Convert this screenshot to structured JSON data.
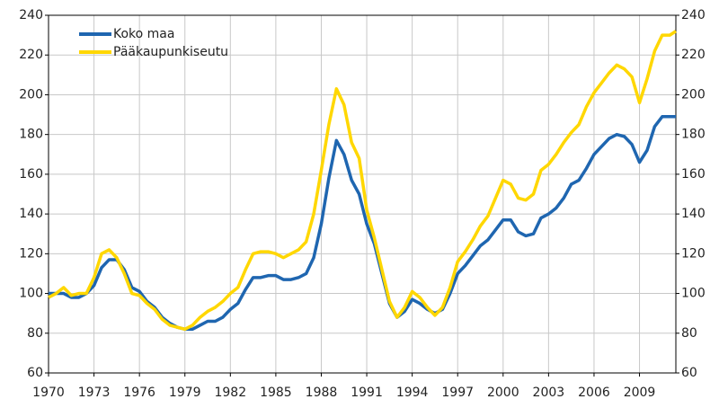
{
  "chart_data": {
    "type": "line",
    "x": [
      1970,
      1970.5,
      1971,
      1971.5,
      1972,
      1972.5,
      1973,
      1973.5,
      1974,
      1974.5,
      1975,
      1975.5,
      1976,
      1976.5,
      1977,
      1977.5,
      1978,
      1978.5,
      1979,
      1979.5,
      1980,
      1980.5,
      1981,
      1981.5,
      1982,
      1982.5,
      1983,
      1983.5,
      1984,
      1984.5,
      1985,
      1985.5,
      1986,
      1986.5,
      1987,
      1987.5,
      1988,
      1988.5,
      1989,
      1989.5,
      1990,
      1990.5,
      1991,
      1991.5,
      1992,
      1992.5,
      1993,
      1993.5,
      1994,
      1994.5,
      1995,
      1995.5,
      1996,
      1996.5,
      1997,
      1997.5,
      1998,
      1998.5,
      1999,
      1999.5,
      2000,
      2000.5,
      2001,
      2001.5,
      2002,
      2002.5,
      2003,
      2003.5,
      2004,
      2004.5,
      2005,
      2005.5,
      2006,
      2006.5,
      2007,
      2007.5,
      2008,
      2008.5,
      2009,
      2009.5,
      2010,
      2010.5,
      2011,
      2011.4
    ],
    "series": [
      {
        "name": "Koko maa",
        "color": "#1f66b0",
        "values": [
          100,
          100,
          100,
          98,
          98,
          100,
          104,
          113,
          117,
          117,
          112,
          103,
          101,
          96,
          93,
          88,
          85,
          83,
          82,
          82,
          84,
          86,
          86,
          88,
          92,
          95,
          102,
          108,
          108,
          109,
          109,
          107,
          107,
          108,
          110,
          118,
          135,
          158,
          177,
          170,
          157,
          150,
          135,
          125,
          110,
          95,
          88,
          91,
          97,
          95,
          92,
          90,
          92,
          100,
          110,
          114,
          119,
          124,
          127,
          132,
          137,
          137,
          131,
          129,
          130,
          138,
          140,
          143,
          148,
          155,
          157,
          163,
          170,
          174,
          178,
          180,
          179,
          175,
          166,
          172,
          184,
          189,
          189,
          189
        ]
      },
      {
        "name": "Pääkaupunkiseutu",
        "color": "#ffd700",
        "values": [
          98,
          100,
          103,
          99,
          100,
          100,
          108,
          120,
          122,
          118,
          110,
          100,
          99,
          95,
          92,
          87,
          84,
          83,
          82,
          84,
          88,
          91,
          93,
          96,
          100,
          103,
          112,
          120,
          121,
          121,
          120,
          118,
          120,
          122,
          126,
          140,
          162,
          185,
          203,
          195,
          176,
          168,
          142,
          128,
          112,
          96,
          88,
          93,
          101,
          98,
          93,
          89,
          93,
          103,
          116,
          121,
          127,
          134,
          139,
          148,
          157,
          155,
          148,
          147,
          150,
          162,
          165,
          170,
          176,
          181,
          185,
          194,
          201,
          206,
          211,
          215,
          213,
          209,
          196,
          208,
          222,
          230,
          230,
          232
        ]
      }
    ],
    "xlim": [
      1970,
      2011.4
    ],
    "xticks": [
      1970,
      1973,
      1976,
      1979,
      1982,
      1985,
      1988,
      1991,
      1994,
      1997,
      2000,
      2003,
      2006,
      2009
    ],
    "ylim": [
      60,
      240
    ],
    "yticks": [
      60,
      80,
      100,
      120,
      140,
      160,
      180,
      200,
      220,
      240
    ],
    "y2lim": [
      60,
      240
    ],
    "y2ticks": [
      60,
      80,
      100,
      120,
      140,
      160,
      180,
      200,
      220,
      240
    ],
    "grid": true,
    "legend": "upper left"
  }
}
